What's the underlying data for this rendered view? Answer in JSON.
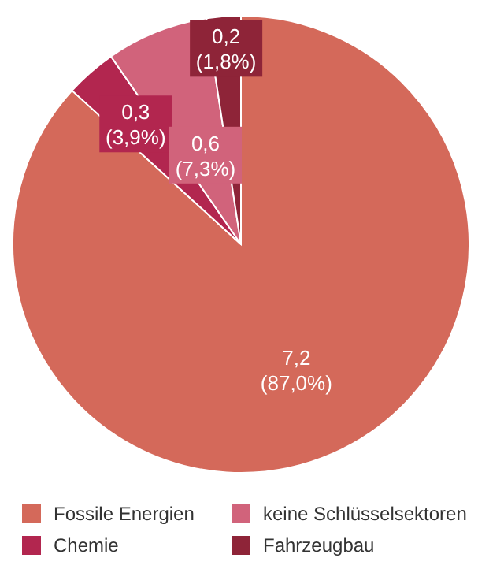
{
  "chart_data": {
    "type": "pie",
    "categories": [
      "Fossile Energien",
      "Chemie",
      "keine Schlüsselsektoren",
      "Fahrzeugbau"
    ],
    "values": [
      7.2,
      0.3,
      0.6,
      0.2
    ],
    "value_labels": [
      "7,2 (87,0%)",
      "0,3 (3,9%)",
      "0,6 (7,3%)",
      "0,2 (1,8%)"
    ],
    "colors": [
      "#d4695a",
      "#b2264f",
      "#d1637b",
      "#8e2438"
    ],
    "legend": "bottom"
  }
}
